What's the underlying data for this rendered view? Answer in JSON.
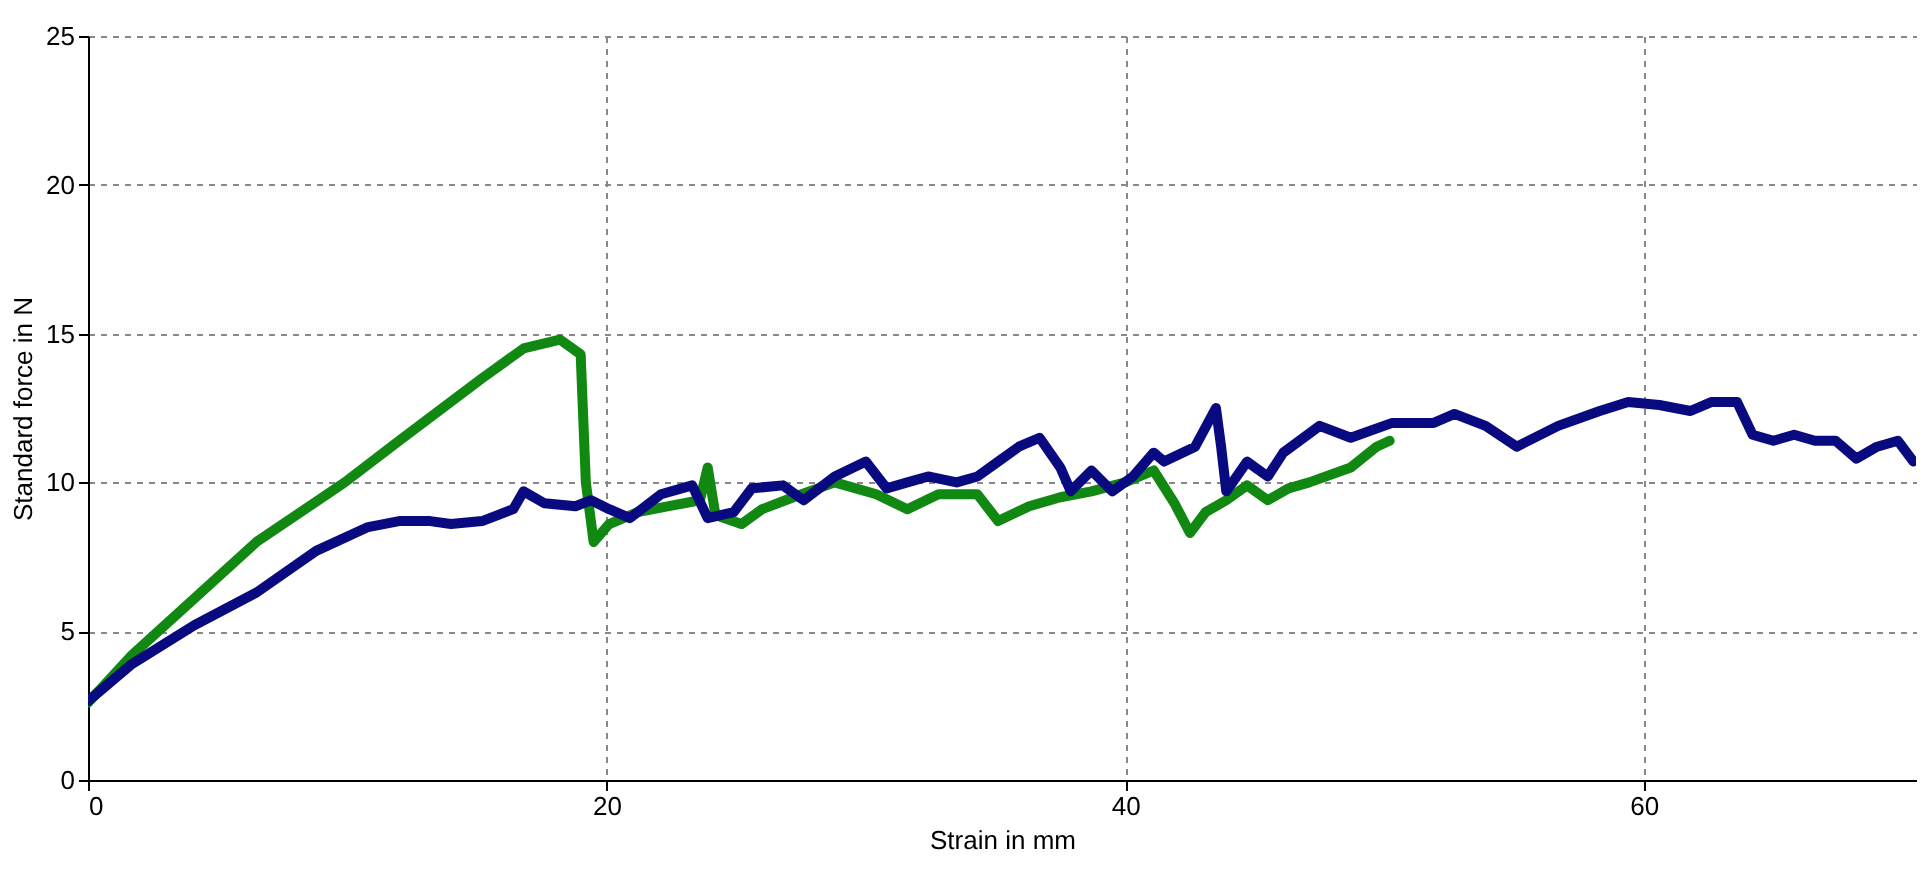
{
  "chart_data": {
    "type": "line",
    "xlabel": "Strain in mm",
    "ylabel": "Standard force in N",
    "xlim": [
      0,
      70.5
    ],
    "xticks": [
      0,
      20,
      40,
      60
    ],
    "ylim": [
      0,
      25
    ],
    "yticks": [
      0,
      5,
      10,
      15,
      20,
      25
    ],
    "grid": true,
    "marker": "none",
    "line_style": "solid",
    "series": [
      {
        "color": "#118811",
        "x": [
          0,
          1.7,
          4.1,
          6.5,
          9.9,
          12,
          15.2,
          16.8,
          18.2,
          19.0,
          19.2,
          19.5,
          20.1,
          21.2,
          22.4,
          23.6,
          23.9,
          24.2,
          25.2,
          26.0,
          27.2,
          28.8,
          30.4,
          31.6,
          32.8,
          34.3,
          35.1,
          36.3,
          37.5,
          38.7,
          40.0,
          41.1,
          41.9,
          42.5,
          43.1,
          43.9,
          44.7,
          45.5,
          46.3,
          47.1,
          48.7,
          49.7,
          50.2
        ],
        "values": [
          2.6,
          4.2,
          6.1,
          8.0,
          10.0,
          11.4,
          13.5,
          14.5,
          14.8,
          14.3,
          10,
          8.0,
          8.6,
          9.0,
          9.2,
          9.4,
          10.5,
          8.9,
          8.6,
          9.1,
          9.5,
          10.0,
          9.6,
          9.1,
          9.6,
          9.6,
          8.7,
          9.2,
          9.5,
          9.7,
          10.0,
          10.4,
          9.3,
          8.3,
          9.0,
          9.4,
          9.9,
          9.4,
          9.8,
          10.0,
          10.5,
          11.2,
          11.4
        ]
      },
      {
        "color": "#0a0a80",
        "x": [
          0,
          1.7,
          4.1,
          6.5,
          8.8,
          10.8,
          12.0,
          13.2,
          14.0,
          15.2,
          16.4,
          16.8,
          17.6,
          18.8,
          19.4,
          20.1,
          20.9,
          22.1,
          23.3,
          23.9,
          24.9,
          25.6,
          26.8,
          27.6,
          28.8,
          30.0,
          30.8,
          31.6,
          32.4,
          33.5,
          34.3,
          35.1,
          35.9,
          36.7,
          37.5,
          37.9,
          38.7,
          39.5,
          40.3,
          41.1,
          41.5,
          42.7,
          43.5,
          43.7,
          43.9,
          44.7,
          45.5,
          46.1,
          47.5,
          48.7,
          50.3,
          51.9,
          52.7,
          53.9,
          55.1,
          56.7,
          58.3,
          59.4,
          60.6,
          61.8,
          62.6,
          63.6,
          64.2,
          65.0,
          65.8,
          66.6,
          67.4,
          68.2,
          69.0,
          69.8,
          70.4
        ],
        "values": [
          2.65,
          3.9,
          5.2,
          6.3,
          7.7,
          8.5,
          8.7,
          8.7,
          8.6,
          8.7,
          9.1,
          9.7,
          9.3,
          9.2,
          9.4,
          9.1,
          8.8,
          9.6,
          9.9,
          8.8,
          9.0,
          9.8,
          9.9,
          9.4,
          10.2,
          10.7,
          9.8,
          10.0,
          10.2,
          10.0,
          10.2,
          10.7,
          11.2,
          11.5,
          10.5,
          9.7,
          10.4,
          9.7,
          10.2,
          11.0,
          10.7,
          11.2,
          12.5,
          11.2,
          9.7,
          10.7,
          10.2,
          11.0,
          11.9,
          11.5,
          12.0,
          12.0,
          12.3,
          11.9,
          11.2,
          11.9,
          12.4,
          12.7,
          12.6,
          12.4,
          12.7,
          12.7,
          11.6,
          11.4,
          11.6,
          11.4,
          11.4,
          10.8,
          11.2,
          11.4,
          10.7
        ]
      }
    ]
  }
}
